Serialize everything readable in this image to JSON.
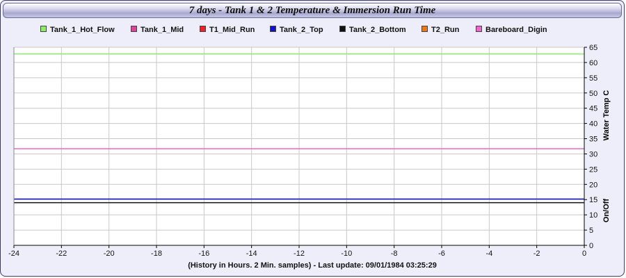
{
  "title": "7 days - Tank 1 & 2 Temperature & Immersion Run Time",
  "footer": "(History in Hours. 2 Min. samples) - Last update: 09/01/1984 03:25:29",
  "chart_data": {
    "type": "line",
    "xlabel": "",
    "ylabel_right": "Water Temp C",
    "ylabel_right2": "On/Off",
    "xlim": [
      -24,
      0
    ],
    "ylim": [
      0,
      65
    ],
    "x_ticks": [
      -24,
      -22,
      -20,
      -18,
      -16,
      -14,
      -12,
      -10,
      -8,
      -6,
      -4,
      -2,
      0
    ],
    "y_ticks": [
      0,
      5,
      10,
      15,
      20,
      25,
      30,
      35,
      40,
      45,
      50,
      55,
      60,
      65
    ],
    "grid": true,
    "legend_position": "top",
    "series": [
      {
        "name": "Tank_1_Hot_Flow",
        "color": "#88ee66",
        "x": [
          -24,
          0
        ],
        "y": [
          62.8,
          62.8
        ]
      },
      {
        "name": "Tank_1_Mid",
        "color": "#dd4499",
        "x": [],
        "y": []
      },
      {
        "name": "T1_Mid_Run",
        "color": "#ee2222",
        "x": [],
        "y": []
      },
      {
        "name": "Tank_2_Top",
        "color": "#1111cc",
        "x": [
          -24,
          0
        ],
        "y": [
          15.2,
          15.2
        ]
      },
      {
        "name": "Tank_2_Bottom",
        "color": "#111111",
        "x": [
          -24,
          0
        ],
        "y": [
          14.0,
          14.0
        ]
      },
      {
        "name": "T2_Run",
        "color": "#ee7711",
        "x": [],
        "y": []
      },
      {
        "name": "Bareboard_Digin",
        "color": "#ee66cc",
        "x": [
          -24,
          0
        ],
        "y": [
          31.7,
          31.7
        ]
      }
    ]
  }
}
